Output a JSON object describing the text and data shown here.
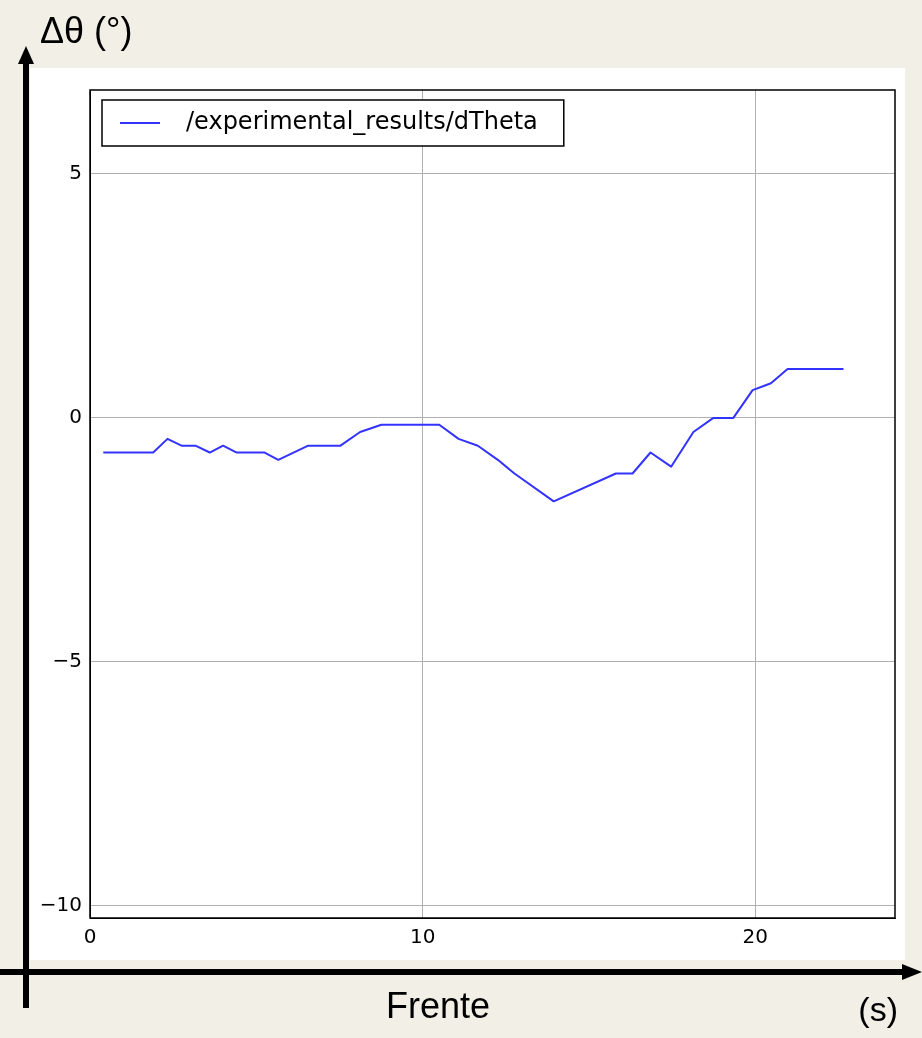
{
  "chart_data": {
    "type": "line",
    "xlabel": "Frente",
    "ylabel": "Δθ (°)",
    "annotations": [
      "(s)"
    ],
    "series": [
      {
        "name": "/experimental_results/dTheta",
        "color": "#3333ff",
        "x": [
          0.4,
          1.9,
          2.33,
          2.75,
          3.17,
          3.6,
          4.0,
          4.41,
          5.25,
          5.66,
          6.56,
          7.53,
          8.12,
          8.76,
          10.5,
          11.08,
          11.66,
          12.26,
          12.76,
          13.94,
          15.81,
          16.31,
          16.85,
          17.47,
          18.14,
          18.74,
          19.34,
          19.92,
          20.47,
          20.97,
          22.65
        ],
        "values": [
          -0.71,
          -0.71,
          -0.43,
          -0.57,
          -0.57,
          -0.71,
          -0.57,
          -0.71,
          -0.71,
          -0.86,
          -0.57,
          -0.57,
          -0.29,
          -0.14,
          -0.14,
          -0.43,
          -0.57,
          -0.86,
          -1.14,
          -1.71,
          -1.14,
          -1.14,
          -0.71,
          -1.0,
          -0.29,
          0,
          0,
          0.57,
          0.71,
          1.0,
          1.0
        ]
      }
    ],
    "xlim": [
      0,
      24.2
    ],
    "xticks": [
      0,
      10,
      20
    ],
    "ylim": [
      -10.25,
      6.72
    ],
    "yticks": [
      {
        "value": -10,
        "label": "−10"
      },
      {
        "value": -5,
        "label": "−5"
      },
      0,
      5
    ],
    "grid": true,
    "legend": "top left",
    "marker": "none",
    "line_style": "solid"
  }
}
